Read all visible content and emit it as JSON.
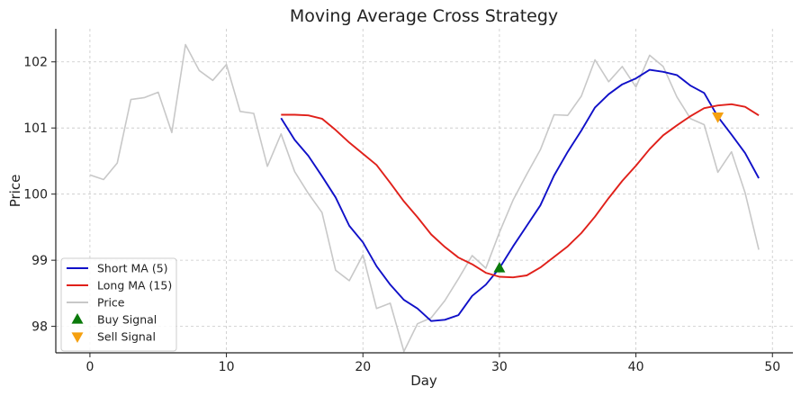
{
  "chart_data": {
    "type": "line",
    "title": "Moving Average Cross Strategy",
    "xlabel": "Day",
    "ylabel": "Price",
    "xlim": [
      -2.5,
      51.5
    ],
    "ylim": [
      97.6,
      102.5
    ],
    "xticks": [
      0,
      10,
      20,
      30,
      40,
      50
    ],
    "yticks": [
      98,
      99,
      100,
      101,
      102
    ],
    "grid": true,
    "legend_position": "lower-left",
    "series": [
      {
        "name": "Short MA (5)",
        "color": "#1010c8",
        "x": [
          14,
          15,
          16,
          17,
          18,
          19,
          20,
          21,
          22,
          23,
          24,
          25,
          26,
          27,
          28,
          29,
          30,
          31,
          32,
          33,
          34,
          35,
          36,
          37,
          38,
          39,
          40,
          41,
          42,
          43,
          44,
          45,
          46,
          47,
          48,
          49
        ],
        "y": [
          101.15,
          100.82,
          100.58,
          100.27,
          99.95,
          99.52,
          99.27,
          98.91,
          98.63,
          98.4,
          98.27,
          98.08,
          98.1,
          98.17,
          98.46,
          98.63,
          98.88,
          99.21,
          99.52,
          99.83,
          100.28,
          100.64,
          100.96,
          101.31,
          101.51,
          101.66,
          101.75,
          101.88,
          101.85,
          101.8,
          101.64,
          101.53,
          101.17,
          100.9,
          100.62,
          100.24
        ]
      },
      {
        "name": "Long MA (15)",
        "color": "#e0201a",
        "x": [
          14,
          15,
          16,
          17,
          18,
          19,
          20,
          21,
          22,
          23,
          24,
          25,
          26,
          27,
          28,
          29,
          30,
          31,
          32,
          33,
          34,
          35,
          36,
          37,
          38,
          39,
          40,
          41,
          42,
          43,
          44,
          45,
          46,
          47,
          48,
          49
        ],
        "y": [
          101.2,
          101.2,
          101.19,
          101.14,
          100.97,
          100.78,
          100.61,
          100.44,
          100.17,
          99.89,
          99.65,
          99.39,
          99.2,
          99.04,
          98.94,
          98.81,
          98.75,
          98.74,
          98.77,
          98.89,
          99.05,
          99.21,
          99.41,
          99.66,
          99.94,
          100.2,
          100.43,
          100.68,
          100.89,
          101.04,
          101.18,
          101.3,
          101.34,
          101.36,
          101.32,
          101.19
        ]
      },
      {
        "name": "Price",
        "color": "#c8c8c8",
        "x": [
          0,
          1,
          2,
          3,
          4,
          5,
          6,
          7,
          8,
          9,
          10,
          11,
          12,
          13,
          14,
          15,
          16,
          17,
          18,
          19,
          20,
          21,
          22,
          23,
          24,
          25,
          26,
          27,
          28,
          29,
          30,
          31,
          32,
          33,
          34,
          35,
          36,
          37,
          38,
          39,
          40,
          41,
          42,
          43,
          44,
          45,
          46,
          47,
          48,
          49
        ],
        "y": [
          100.29,
          100.22,
          100.47,
          101.43,
          101.46,
          101.54,
          100.93,
          102.26,
          101.87,
          101.72,
          101.96,
          101.25,
          101.22,
          100.42,
          100.91,
          100.34,
          100.01,
          99.72,
          98.85,
          98.69,
          99.08,
          98.27,
          98.35,
          97.62,
          98.04,
          98.13,
          98.39,
          98.72,
          99.07,
          98.88,
          99.42,
          99.91,
          100.3,
          100.67,
          101.2,
          101.19,
          101.48,
          102.03,
          101.7,
          101.93,
          101.62,
          102.1,
          101.93,
          101.47,
          101.14,
          101.05,
          100.33,
          100.64,
          100.02,
          99.16
        ]
      }
    ],
    "markers": [
      {
        "name": "Buy Signal",
        "shape": "triangle-up",
        "color": "#0a7a0a",
        "x": [
          30
        ],
        "y": [
          98.88
        ]
      },
      {
        "name": "Sell Signal",
        "shape": "triangle-down",
        "color": "#f5a00f",
        "x": [
          46
        ],
        "y": [
          101.17
        ]
      }
    ]
  }
}
